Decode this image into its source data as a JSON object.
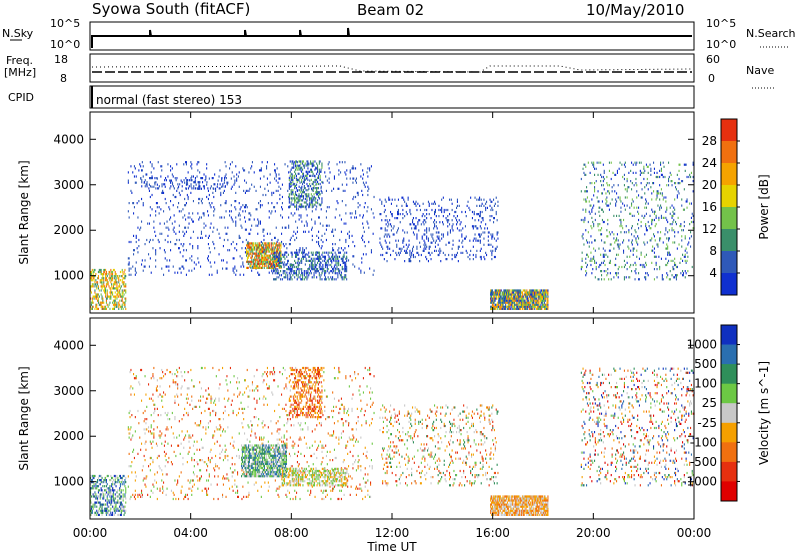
{
  "header": {
    "station": "Syowa South (fitACF)",
    "beam": "Beam 02",
    "date": "10/May/2010"
  },
  "left_labels": {
    "nsky": "N.Sky",
    "nsky_top": "10^5",
    "nsky_bottom": "10^0",
    "freq": "Freq.",
    "freq_unit": "[MHz]",
    "freq_top": "18",
    "freq_bottom": "8",
    "cpid": "CPID",
    "cpid_value": "normal (fast stereo) 153"
  },
  "right_labels": {
    "nsearch": "N.Search",
    "nsearch_top": "10^5",
    "nsearch_bottom": "10^0",
    "nave": "Nave",
    "nave_top": "60",
    "nave_bottom": "0"
  },
  "chart_data": [
    {
      "type": "heatmap",
      "panel": "power",
      "ylabel": "Slant Range [km]",
      "yticks": [
        "1000",
        "2000",
        "3000",
        "4000"
      ],
      "ylim": [
        180,
        4600
      ],
      "xlim": [
        0,
        24
      ],
      "colorbar": {
        "label": "Power [dB]",
        "ticks": [
          "4",
          "8",
          "12",
          "16",
          "20",
          "24",
          "28"
        ],
        "colors": [
          "#1030d0",
          "#2f59b8",
          "#3a8f6a",
          "#73c24a",
          "#e6d300",
          "#f5a300",
          "#f07010",
          "#e63010"
        ]
      },
      "regions": [
        {
          "t0": 0.0,
          "t1": 1.4,
          "r0": 250,
          "r1": 1150,
          "density": 0.45,
          "level": [
            2,
            6
          ]
        },
        {
          "t0": 1.5,
          "t1": 11.3,
          "r0": 1000,
          "r1": 3500,
          "density": 0.06,
          "level": [
            0,
            1
          ]
        },
        {
          "t0": 2.0,
          "t1": 5.5,
          "r0": 2900,
          "r1": 3150,
          "density": 0.2,
          "level": [
            0,
            1
          ]
        },
        {
          "t0": 6.2,
          "t1": 7.6,
          "r0": 1150,
          "r1": 1700,
          "density": 0.7,
          "level": [
            2,
            7
          ]
        },
        {
          "t0": 7.2,
          "t1": 10.2,
          "r0": 900,
          "r1": 1500,
          "density": 0.35,
          "level": [
            0,
            2
          ]
        },
        {
          "t0": 7.9,
          "t1": 9.2,
          "r0": 2500,
          "r1": 3500,
          "density": 0.35,
          "level": [
            0,
            3
          ]
        },
        {
          "t0": 11.5,
          "t1": 16.2,
          "r0": 1300,
          "r1": 2700,
          "density": 0.12,
          "level": [
            0,
            1
          ]
        },
        {
          "t0": 15.9,
          "t1": 18.2,
          "r0": 250,
          "r1": 700,
          "density": 0.85,
          "level": [
            0,
            6
          ]
        },
        {
          "t0": 19.5,
          "t1": 24.0,
          "r0": 900,
          "r1": 3500,
          "density": 0.1,
          "level": [
            0,
            3
          ]
        }
      ]
    },
    {
      "type": "heatmap",
      "panel": "velocity",
      "xlabel": "Time UT",
      "ylabel": "Slant Range [km]",
      "yticks": [
        "1000",
        "2000",
        "3000",
        "4000"
      ],
      "xticks": [
        "00:00",
        "04:00",
        "08:00",
        "12:00",
        "16:00",
        "20:00",
        "00:00"
      ],
      "ylim": [
        180,
        4600
      ],
      "xlim": [
        0,
        24
      ],
      "colorbar": {
        "label": "Velocity [m s^-1]",
        "ticks": [
          "1000",
          "500",
          "100",
          "25",
          "-25",
          "-100",
          "-500",
          "-1000"
        ],
        "colors": [
          "#1030c0",
          "#2a6fb0",
          "#2f8f5a",
          "#6cc844",
          "#c8c8c8",
          "#f5a000",
          "#f07010",
          "#e63010",
          "#e00000"
        ]
      },
      "regions": [
        {
          "t0": 0.0,
          "t1": 1.4,
          "r0": 250,
          "r1": 1150,
          "density": 0.4,
          "level": [
            0,
            4
          ]
        },
        {
          "t0": 1.5,
          "t1": 11.3,
          "r0": 600,
          "r1": 3500,
          "density": 0.06,
          "level": [
            3,
            7
          ]
        },
        {
          "t0": 6.0,
          "t1": 7.8,
          "r0": 1100,
          "r1": 1800,
          "density": 0.65,
          "level": [
            1,
            4
          ]
        },
        {
          "t0": 7.6,
          "t1": 10.2,
          "r0": 900,
          "r1": 1300,
          "density": 0.45,
          "level": [
            3,
            5
          ]
        },
        {
          "t0": 7.9,
          "t1": 9.2,
          "r0": 2400,
          "r1": 3500,
          "density": 0.35,
          "level": [
            5,
            7
          ]
        },
        {
          "t0": 11.5,
          "t1": 16.2,
          "r0": 900,
          "r1": 2700,
          "density": 0.1,
          "level": [
            2,
            7
          ]
        },
        {
          "t0": 15.9,
          "t1": 18.2,
          "r0": 250,
          "r1": 700,
          "density": 0.8,
          "level": [
            4,
            6
          ]
        },
        {
          "t0": 19.5,
          "t1": 24.0,
          "r0": 900,
          "r1": 3500,
          "density": 0.1,
          "level": [
            0,
            8
          ]
        }
      ]
    }
  ]
}
